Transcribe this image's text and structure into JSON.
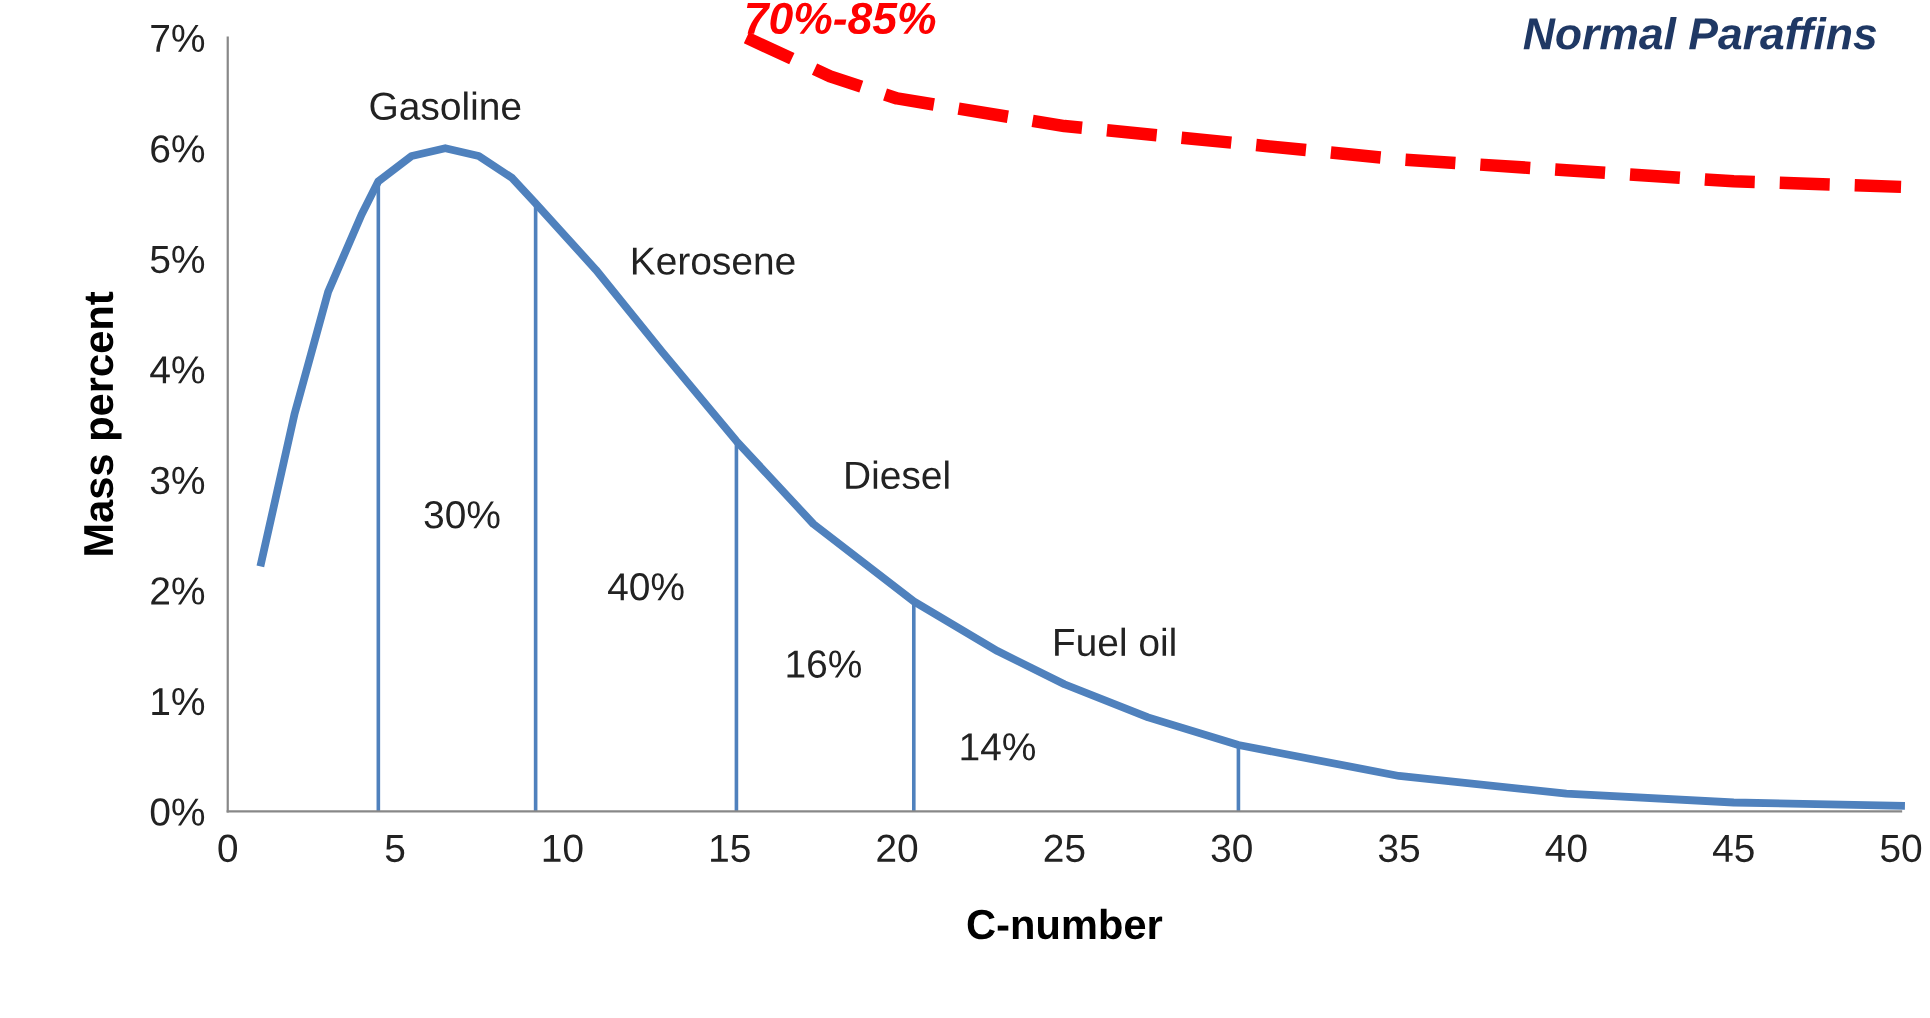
{
  "chart_data": {
    "type": "line",
    "xlabel": "C-number",
    "ylabel": "Mass percent",
    "xlim": [
      0,
      50
    ],
    "xticks": [
      0,
      5,
      10,
      15,
      20,
      25,
      30,
      35,
      40,
      45,
      50
    ],
    "ylim": [
      0,
      7
    ],
    "yticks": [
      {
        "value": 0,
        "label": "0%"
      },
      {
        "value": 1,
        "label": "1%"
      },
      {
        "value": 2,
        "label": "2%"
      },
      {
        "value": 3,
        "label": "3%"
      },
      {
        "value": 4,
        "label": "4%"
      },
      {
        "value": 5,
        "label": "5%"
      },
      {
        "value": 6,
        "label": "6%"
      },
      {
        "value": 7,
        "label": "7%"
      }
    ],
    "grid": false,
    "legend": false,
    "marker": "none",
    "series": [
      {
        "color": "#4f81bd",
        "line_style": "solid",
        "x": [
          1,
          2,
          3,
          4,
          4.5,
          5.5,
          6.5,
          7.5,
          8.5,
          9.2,
          11,
          13,
          15.2,
          17.5,
          20.5,
          23,
          25,
          27.5,
          30.2,
          35,
          40,
          45,
          50
        ],
        "values": [
          2.25,
          3.6,
          4.7,
          5.4,
          5.7,
          5.93,
          6.0,
          5.93,
          5.73,
          5.5,
          4.9,
          4.15,
          3.35,
          2.6,
          1.9,
          1.45,
          1.15,
          0.85,
          0.6,
          0.32,
          0.16,
          0.08,
          0.05
        ]
      },
      {
        "color": "#ff0000",
        "line_style": "dashed",
        "x": [
          15.5,
          18,
          20,
          25,
          30,
          35,
          40,
          45,
          50
        ],
        "values": [
          7.0,
          6.65,
          6.45,
          6.2,
          6.05,
          5.9,
          5.8,
          5.7,
          5.65
        ]
      }
    ],
    "ref_lines": [
      {
        "axis": "x",
        "value": 4.5,
        "color": "#4f81bd"
      },
      {
        "axis": "x",
        "value": 9.2,
        "color": "#4f81bd"
      },
      {
        "axis": "x",
        "value": 15.2,
        "color": "#4f81bd"
      },
      {
        "axis": "x",
        "value": 20.5,
        "color": "#4f81bd"
      },
      {
        "axis": "x",
        "value": 30.2,
        "color": "#4f81bd"
      }
    ],
    "annotations": [
      "Gasoline",
      "Kerosene",
      "Diesel",
      "Fuel oil",
      "30%",
      "40%",
      "16%",
      "14%",
      "70%-85%",
      "Normal Paraffins"
    ]
  }
}
